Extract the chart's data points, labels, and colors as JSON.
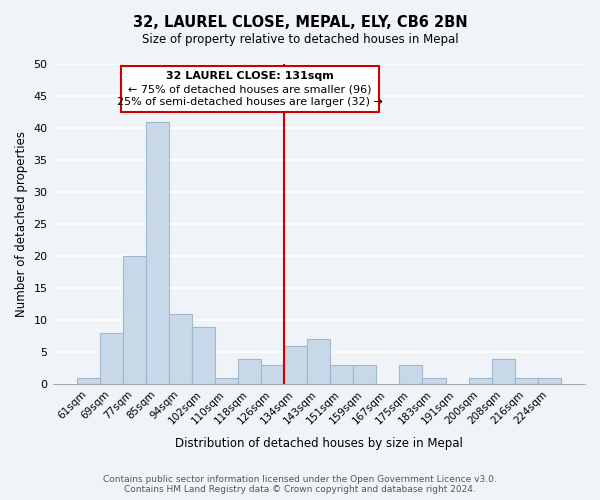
{
  "title": "32, LAUREL CLOSE, MEPAL, ELY, CB6 2BN",
  "subtitle": "Size of property relative to detached houses in Mepal",
  "xlabel": "Distribution of detached houses by size in Mepal",
  "ylabel": "Number of detached properties",
  "bin_labels": [
    "61sqm",
    "69sqm",
    "77sqm",
    "85sqm",
    "94sqm",
    "102sqm",
    "110sqm",
    "118sqm",
    "126sqm",
    "134sqm",
    "143sqm",
    "151sqm",
    "159sqm",
    "167sqm",
    "175sqm",
    "183sqm",
    "191sqm",
    "200sqm",
    "208sqm",
    "216sqm",
    "224sqm"
  ],
  "bar_heights": [
    1,
    8,
    20,
    41,
    11,
    9,
    1,
    4,
    3,
    6,
    7,
    3,
    3,
    0,
    3,
    1,
    0,
    1,
    4,
    1,
    1
  ],
  "bar_color": "#c8d8e8",
  "bar_edge_color": "#a0b8cc",
  "vline_x": 8.5,
  "vline_color": "#cc0000",
  "annotation_title": "32 LAUREL CLOSE: 131sqm",
  "annotation_line1": "← 75% of detached houses are smaller (96)",
  "annotation_line2": "25% of semi-detached houses are larger (32) →",
  "annotation_box_color": "#ffffff",
  "annotation_box_edge": "#cc0000",
  "ylim": [
    0,
    50
  ],
  "yticks": [
    0,
    5,
    10,
    15,
    20,
    25,
    30,
    35,
    40,
    45,
    50
  ],
  "footer_line1": "Contains HM Land Registry data © Crown copyright and database right 2024.",
  "footer_line2": "Contains public sector information licensed under the Open Government Licence v3.0.",
  "bg_color": "#f0f4f8"
}
